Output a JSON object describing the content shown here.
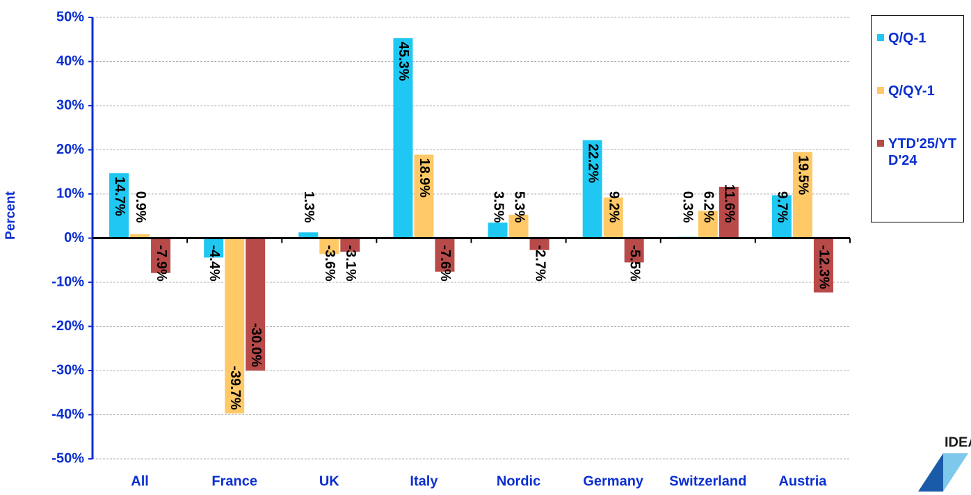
{
  "chart_data": {
    "type": "bar",
    "y_label": "Percent",
    "categories": [
      "All",
      "France",
      "UK",
      "Italy",
      "Nordic",
      "Germany",
      "Switzerland",
      "Austria"
    ],
    "series": [
      {
        "name": "Q/Q-1",
        "color": "#1fc8f2",
        "values": [
          14.7,
          -4.4,
          1.3,
          45.3,
          3.5,
          22.2,
          0.3,
          9.7
        ],
        "value_labels": [
          "14.7%",
          "-4.4%",
          "1.3%",
          "45.3%",
          "3.5%",
          "22.2%",
          "0.3%",
          "9.7%"
        ]
      },
      {
        "name": "Q/QY-1",
        "color": "#ffc967",
        "values": [
          0.9,
          -39.7,
          -3.6,
          18.9,
          5.3,
          9.2,
          6.2,
          19.5
        ],
        "value_labels": [
          "0.9%",
          "-39.7%",
          "-3.6%",
          "18.9%",
          "5.3%",
          "9.2%",
          "6.2%",
          "19.5%"
        ]
      },
      {
        "name": "YTD'25/YTD'24",
        "color": "#b84a4a",
        "values": [
          -7.9,
          -30.0,
          -3.1,
          -7.6,
          -2.7,
          -5.5,
          11.6,
          -12.3
        ],
        "value_labels": [
          "-7.9%",
          "-30.0%",
          "-3.1%",
          "-7.6%",
          "-2.7%",
          "-5.5%",
          "11.6%",
          "-12.3%"
        ]
      }
    ],
    "ylim": [
      -50,
      50
    ],
    "yticks": [
      {
        "value": -50,
        "label": "-50%"
      },
      {
        "value": -40,
        "label": "-40%"
      },
      {
        "value": -30,
        "label": "-30%"
      },
      {
        "value": -20,
        "label": "-20%"
      },
      {
        "value": -10,
        "label": "-10%"
      },
      {
        "value": 0,
        "label": "0%"
      },
      {
        "value": 10,
        "label": "10%"
      },
      {
        "value": 20,
        "label": "20%"
      },
      {
        "value": 30,
        "label": "30%"
      },
      {
        "value": 40,
        "label": "40%"
      },
      {
        "value": 50,
        "label": "50%"
      }
    ],
    "grid": true,
    "legend": "right"
  },
  "logo": "IDEA"
}
